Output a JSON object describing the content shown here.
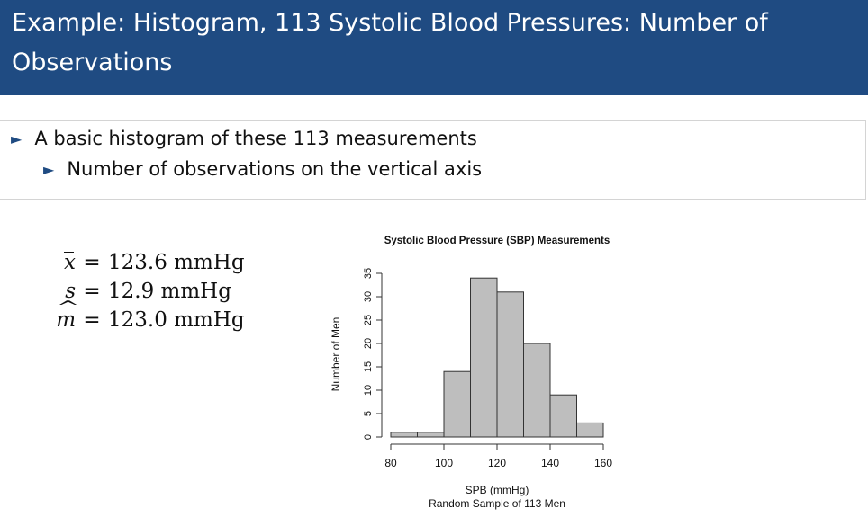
{
  "slide": {
    "title": "Example: Histogram, 113 Systolic Blood Pressures: Number of Observations",
    "bullets": {
      "level1": "A basic histogram of these 113 measurements",
      "level2": "Number of observations on the vertical axis",
      "marker": "►"
    }
  },
  "stats": {
    "mean": {
      "symbol": "x",
      "eq": "=",
      "value": "123.6 mmHg"
    },
    "sd": {
      "symbol": "s",
      "eq": "=",
      "value": "12.9 mmHg"
    },
    "median": {
      "symbol": "m",
      "eq": "=",
      "value": "123.0 mmHg"
    }
  },
  "colors": {
    "title_bar": "#1f4b82",
    "bar_fill": "#bebebe",
    "bar_stroke": "#333333"
  },
  "chart_data": {
    "type": "bar",
    "title": "Systolic Blood Pressure (SBP) Measurements",
    "xlabel": "SPB (mmHg)",
    "sublabel": "Random Sample of 113 Men",
    "ylabel": "Number of Men",
    "bins": [
      {
        "from": 80,
        "to": 90,
        "count": 1
      },
      {
        "from": 90,
        "to": 100,
        "count": 1
      },
      {
        "from": 100,
        "to": 110,
        "count": 14
      },
      {
        "from": 110,
        "to": 120,
        "count": 34
      },
      {
        "from": 120,
        "to": 130,
        "count": 31
      },
      {
        "from": 130,
        "to": 140,
        "count": 20
      },
      {
        "from": 140,
        "to": 150,
        "count": 9
      },
      {
        "from": 150,
        "to": 160,
        "count": 3
      }
    ],
    "xlim": [
      80,
      160
    ],
    "ylim": [
      0,
      35
    ],
    "xticks": [
      80,
      100,
      120,
      140,
      160
    ],
    "yticks": [
      0,
      5,
      10,
      15,
      20,
      25,
      30,
      35
    ],
    "grid": false
  }
}
